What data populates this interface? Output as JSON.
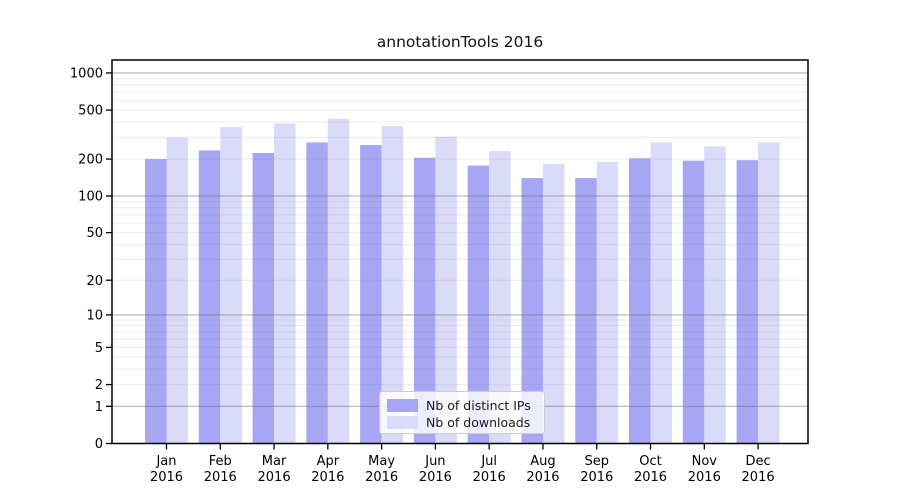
{
  "chart_data": {
    "type": "bar",
    "title": "annotationTools 2016",
    "categories": [
      "Jan",
      "Feb",
      "Mar",
      "Apr",
      "May",
      "Jun",
      "Jul",
      "Aug",
      "Sep",
      "Oct",
      "Nov",
      "Dec"
    ],
    "xlabel_second_line": "2016",
    "series": [
      {
        "name": "Nb of distinct IPs",
        "color": "#a6a6f4",
        "values": [
          200,
          235,
          224,
          273,
          260,
          205,
          177,
          140,
          140,
          203,
          194,
          196
        ]
      },
      {
        "name": "Nb of downloads",
        "color": "#dadaf9",
        "values": [
          300,
          365,
          390,
          425,
          371,
          304,
          232,
          182,
          190,
          273,
          253,
          273
        ]
      }
    ],
    "xlabel": "",
    "ylabel": "",
    "y_scale": "log10(value+1)",
    "yticks": [
      0,
      1,
      2,
      5,
      10,
      20,
      50,
      100,
      200,
      500,
      1000
    ],
    "ylim": [
      0,
      1290
    ],
    "grid": {
      "on": true,
      "major_lines_at": [
        1,
        10,
        100,
        1000
      ],
      "minor_lines_at": [
        2,
        3,
        4,
        5,
        6,
        7,
        8,
        9,
        20,
        30,
        40,
        50,
        60,
        70,
        80,
        90,
        200,
        300,
        400,
        500,
        600,
        700,
        800,
        900
      ],
      "drawn_above_bars": true
    },
    "legend": {
      "position": "lower center-left inside plot"
    }
  }
}
